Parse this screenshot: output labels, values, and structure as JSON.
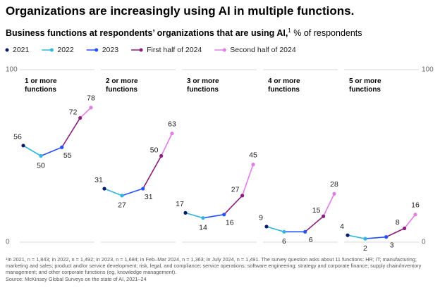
{
  "chart_data": {
    "type": "line",
    "title": "Organizations are increasingly using AI in multiple functions.",
    "subtitle": "Business functions at respondents’ organizations that are using AI,",
    "footnote_marker": "1",
    "unit": "% of respondents",
    "categories": [
      "2021",
      "2022",
      "2023",
      "First half of 2024",
      "Second half of 2024"
    ],
    "colors": [
      "#051c6b",
      "#2fb5e0",
      "#2251ff",
      "#8b1e7c",
      "#e07ee6"
    ],
    "series": [
      {
        "name": "1 or more functions",
        "values": [
          56,
          50,
          55,
          72,
          78
        ]
      },
      {
        "name": "2 or more functions",
        "values": [
          31,
          27,
          31,
          50,
          63
        ]
      },
      {
        "name": "3 or more functions",
        "values": [
          17,
          14,
          16,
          27,
          45
        ]
      },
      {
        "name": "4 or more functions",
        "values": [
          9,
          6,
          6,
          15,
          28
        ]
      },
      {
        "name": "5 or more functions",
        "values": [
          4,
          2,
          3,
          8,
          16
        ]
      }
    ],
    "ylim": [
      0,
      100
    ],
    "yticks": [
      0,
      100
    ]
  },
  "notes": {
    "footnote": "¹In 2021, n = 1,843; in 2022, n = 1,492; in 2023, n = 1,684; in Feb–Mar 2024, n = 1,363; in July 2024, n = 1,491. The survey question asks about 11 functions: HR; IT; manufacturing; marketing and sales; product and/or service development; risk, legal, and compliance; service operations; software engineering; strategy and corporate finance; supply chain/inventory management; and other corporate functions (eg, knowledge management).",
    "source": "Source: McKinsey Global Surveys on the state of AI, 2021–24"
  }
}
